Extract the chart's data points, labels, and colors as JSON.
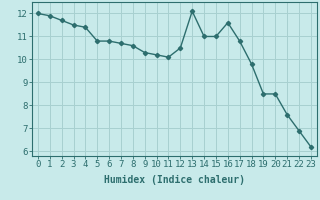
{
  "x": [
    0,
    1,
    2,
    3,
    4,
    5,
    6,
    7,
    8,
    9,
    10,
    11,
    12,
    13,
    14,
    15,
    16,
    17,
    18,
    19,
    20,
    21,
    22,
    23
  ],
  "y": [
    12.0,
    11.9,
    11.7,
    11.5,
    11.4,
    10.8,
    10.8,
    10.7,
    10.6,
    10.3,
    10.2,
    10.1,
    10.5,
    12.1,
    11.0,
    11.0,
    11.6,
    10.8,
    9.8,
    8.5,
    8.5,
    7.6,
    6.9,
    6.2
  ],
  "line_color": "#2d6e6e",
  "marker": "D",
  "marker_size": 2.2,
  "line_width": 1.0,
  "bg_color": "#c8eaea",
  "grid_color": "#a8d0d0",
  "xlabel": "Humidex (Indice chaleur)",
  "xlabel_fontsize": 7,
  "xlim": [
    -0.5,
    23.5
  ],
  "ylim": [
    5.8,
    12.5
  ],
  "xtick_labels": [
    "0",
    "1",
    "2",
    "3",
    "4",
    "5",
    "6",
    "7",
    "8",
    "9",
    "10",
    "11",
    "12",
    "13",
    "14",
    "15",
    "16",
    "17",
    "18",
    "19",
    "20",
    "21",
    "22",
    "23"
  ],
  "ytick_values": [
    6,
    7,
    8,
    9,
    10,
    11,
    12
  ],
  "tick_color": "#2d6e6e",
  "tick_fontsize": 6.5,
  "spine_color": "#2d6e6e"
}
